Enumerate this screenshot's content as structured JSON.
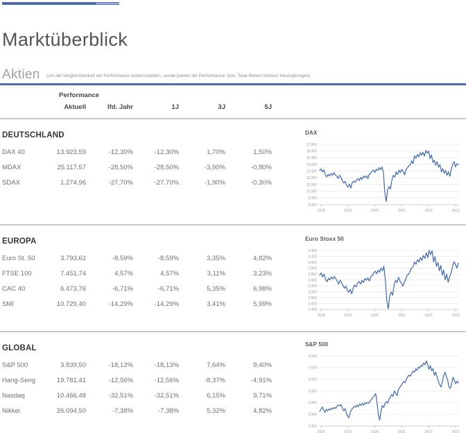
{
  "header": {
    "title": "Marktüberblick",
    "section": "Aktien",
    "note": "(um die Vergleichbarkeit der Performance sicherzustellen, wurde jeweils die Performance- bzw. Total-Return-Version herangezogen)"
  },
  "colors": {
    "accent_blue": "#4b6cae",
    "accent_blue_light": "#93a9d8",
    "chart_line": "#3d68b2",
    "divider_gray": "#c9c9cb"
  },
  "table": {
    "group_label": "Performance",
    "columns": [
      "Aktuell",
      "lfd. Jahr",
      "1J",
      "3J",
      "5J"
    ],
    "sections": [
      {
        "title": "DEUTSCHLAND",
        "rows": [
          {
            "name": "DAX 40",
            "values": [
              "13.923,59",
              "-12,30%",
              "-12,30%",
              "1,70%",
              "1,50%"
            ]
          },
          {
            "name": "MDAX",
            "values": [
              "25.117,57",
              "-28,50%",
              "-28,50%",
              "-3,90%",
              "-0,80%"
            ]
          },
          {
            "name": "SDAX",
            "values": [
              "1.274,96",
              "-27,70%",
              "-27,70%",
              "-1,90%",
              "-0,30%"
            ]
          }
        ]
      },
      {
        "title": "EUROPA",
        "rows": [
          {
            "name": "Euro St. 50",
            "values": [
              "3.793,62",
              "-8,59%",
              "-8,59%",
              "3,35%",
              "4,82%"
            ]
          },
          {
            "name": "FTSE 100",
            "values": [
              "7.451,74",
              "4,57%",
              "4,57%",
              "3,11%",
              "3,23%"
            ]
          },
          {
            "name": "CAC 40",
            "values": [
              "6.473,76",
              "-6,71%",
              "-6,71%",
              "5,35%",
              "6,98%"
            ]
          },
          {
            "name": "SMI",
            "values": [
              "10.729,40",
              "-14,29%",
              "-14,29%",
              "3,41%",
              "5,99%"
            ]
          }
        ]
      },
      {
        "title": "GLOBAL",
        "rows": [
          {
            "name": "S&P 500",
            "values": [
              "3.839,50",
              "-18,13%",
              "-18,13%",
              "7,64%",
              "9,40%"
            ]
          },
          {
            "name": "Hang-Seng",
            "values": [
              "19.781,41",
              "-12,56%",
              "-12,56%",
              "-8,37%",
              "-4,91%"
            ]
          },
          {
            "name": "Nasdaq",
            "values": [
              "10.466,48",
              "-32,51%",
              "-32,51%",
              "6,15%",
              "9,71%"
            ]
          },
          {
            "name": "Nikkei",
            "values": [
              "26.094,50",
              "-7,38%",
              "-7,38%",
              "5,32%",
              "4,82%"
            ]
          }
        ]
      }
    ]
  },
  "chart_data": [
    {
      "type": "line",
      "title": "DAX",
      "x_ticks": [
        "2018",
        "2019",
        "2020",
        "2021",
        "2022",
        "2023"
      ],
      "y_ticks": [
        "17.000",
        "16.000",
        "15.000",
        "14.000",
        "13.000",
        "12.000",
        "11.000",
        "10.000",
        "9.000",
        "8.000"
      ],
      "y_min": 8000,
      "y_max": 17000,
      "grid": true,
      "legend": "none",
      "values": [
        13100,
        13320,
        12880,
        13180,
        12420,
        12150,
        12520,
        12280,
        12650,
        12380,
        12780,
        12430,
        12280,
        11900,
        12380,
        12080,
        11620,
        11220,
        11480,
        10880,
        10620,
        11080,
        10480,
        11280,
        11520,
        11320,
        11680,
        11880,
        11580,
        12080,
        11780,
        12280,
        12020,
        12320,
        11880,
        12480,
        12680,
        12920,
        13180,
        12820,
        13280,
        13080,
        13520,
        13220,
        13620,
        12880,
        9880,
        8480,
        10250,
        10680,
        10320,
        11620,
        12380,
        12120,
        12880,
        12520,
        13120,
        12780,
        13280,
        12920,
        12420,
        13250,
        13480,
        13780,
        13920,
        14520,
        14120,
        15280,
        14920,
        15480,
        15120,
        15720,
        15380,
        15820,
        15220,
        16080,
        15680,
        15980,
        14880,
        15420,
        14280,
        14620,
        13880,
        14420,
        13580,
        13980,
        12880,
        13380,
        12680,
        13120,
        12380,
        12920,
        12220,
        13320,
        13980,
        14420,
        13620,
        14120,
        13950
      ]
    },
    {
      "type": "line",
      "title": "Euro Stoxx 50",
      "x_ticks": [
        "2018",
        "2019",
        "2020",
        "2021",
        "2022",
        "2023"
      ],
      "y_ticks": [
        "4.400",
        "4.200",
        "4.000",
        "3.800",
        "3.600",
        "3.400",
        "3.200",
        "3.000",
        "2.800",
        "2.600",
        "2.400"
      ],
      "y_min": 2400,
      "y_max": 4400,
      "grid": true,
      "legend": "none",
      "values": [
        3560,
        3640,
        3500,
        3600,
        3420,
        3340,
        3460,
        3400,
        3500,
        3430,
        3520,
        3440,
        3360,
        3260,
        3390,
        3310,
        3200,
        3120,
        3190,
        3040,
        2980,
        3080,
        2930,
        3140,
        3230,
        3160,
        3290,
        3350,
        3260,
        3390,
        3310,
        3450,
        3390,
        3470,
        3360,
        3510,
        3560,
        3630,
        3700,
        3610,
        3730,
        3660,
        3800,
        3710,
        3860,
        3400,
        2700,
        2420,
        2870,
        2990,
        2880,
        3230,
        3390,
        3310,
        3490,
        3360,
        3290,
        3190,
        3330,
        3430,
        3570,
        3590,
        3710,
        3800,
        3860,
        4010,
        3930,
        4090,
        4010,
        4160,
        4060,
        4230,
        4130,
        4320,
        4160,
        4400,
        4260,
        4390,
        4010,
        4190,
        3860,
        3990,
        3710,
        3890,
        3560,
        3730,
        3410,
        3590,
        3320,
        3510,
        3630,
        3860,
        4020,
        3930,
        3800,
        3970
      ]
    },
    {
      "type": "line",
      "title": "S&P 500",
      "x_ticks": [
        "2018",
        "2019",
        "2020",
        "2021",
        "2022",
        "2023"
      ],
      "y_ticks": [
        "5.000",
        "4.500",
        "4.000",
        "3.500",
        "3.000",
        "2.500",
        "2.000"
      ],
      "y_min": 2000,
      "y_max": 5000,
      "grid": true,
      "legend": "none",
      "values": [
        2620,
        2720,
        2810,
        2680,
        2580,
        2710,
        2650,
        2730,
        2680,
        2770,
        2720,
        2800,
        2750,
        2850,
        2900,
        2860,
        2920,
        2760,
        2650,
        2740,
        2550,
        2420,
        2350,
        2600,
        2700,
        2780,
        2850,
        2800,
        2900,
        2830,
        2940,
        2880,
        2980,
        2890,
        3000,
        2950,
        3020,
        2970,
        3090,
        3140,
        3230,
        3300,
        3380,
        3000,
        2480,
        2250,
        2650,
        2880,
        2790,
        2950,
        3050,
        2980,
        3150,
        3230,
        3350,
        3270,
        3500,
        3400,
        3300,
        3550,
        3650,
        3720,
        3820,
        3900,
        3850,
        4000,
        4100,
        4180,
        4120,
        4250,
        4350,
        4300,
        4450,
        4380,
        4520,
        4480,
        4600,
        4550,
        4700,
        4620,
        4790,
        4620,
        4420,
        4580,
        4360,
        4460,
        4160,
        4300,
        4110,
        3910,
        3760,
        3670,
        3910,
        4160,
        4300,
        4110,
        3960,
        3660,
        3610,
        3830,
        4080,
        3950,
        3810,
        3920,
        3840
      ]
    }
  ]
}
